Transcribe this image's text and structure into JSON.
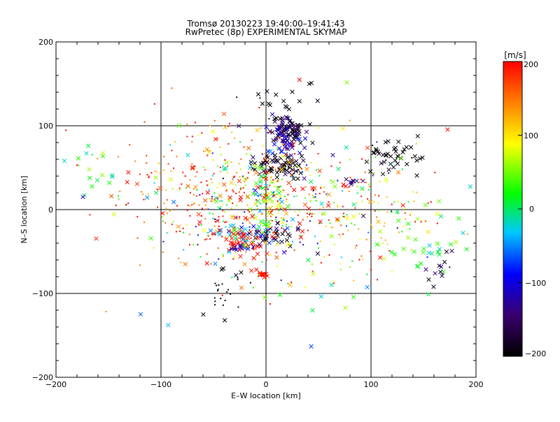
{
  "chart_data": {
    "type": "scatter",
    "title": "Tromsø 20130223 19:40:00–19:41:43",
    "subtitle": "RwPretec (8p) EXPERIMENTAL SKYMAP",
    "xlabel": "E–W location [km]",
    "ylabel": "N–S location [km]",
    "xlim": [
      -200,
      200
    ],
    "ylim": [
      -200,
      200
    ],
    "xticks": [
      "−200",
      "−100",
      "0",
      "100",
      "200"
    ],
    "yticks": [
      "200",
      "100",
      "0",
      "−100",
      "−200"
    ],
    "grid": true,
    "colorbar": {
      "label": "[m/s]",
      "range": [
        -200,
        200
      ],
      "ticks": [
        "200",
        "100",
        "0",
        "−100",
        "−200"
      ],
      "colormap": [
        "#000000",
        "#3a006e",
        "#0000ff",
        "#00c8ff",
        "#00ff00",
        "#ffff00",
        "#ff8000",
        "#ff0000"
      ]
    },
    "markers": [
      "x",
      "dot"
    ],
    "clusters": [
      {
        "x": 20,
        "y": 95,
        "sx": 8,
        "sy": 8,
        "n": 90,
        "v": -170,
        "vs": 30,
        "m": "x"
      },
      {
        "x": 20,
        "y": 80,
        "sx": 10,
        "sy": 12,
        "n": 40,
        "v": -110,
        "vs": 25,
        "m": "x"
      },
      {
        "x": 20,
        "y": 50,
        "sx": 10,
        "sy": 6,
        "n": 45,
        "v": -200,
        "vs": 20,
        "m": "x"
      },
      {
        "x": 20,
        "y": 125,
        "sx": 15,
        "sy": 10,
        "n": 20,
        "v": -200,
        "vs": 15,
        "m": "x"
      },
      {
        "x": 120,
        "y": 65,
        "sx": 14,
        "sy": 10,
        "n": 45,
        "v": -200,
        "vs": 15,
        "m": "x"
      },
      {
        "x": 0,
        "y": 55,
        "sx": 8,
        "sy": 6,
        "n": 25,
        "v": -190,
        "vs": 20,
        "m": "x"
      },
      {
        "x": 85,
        "y": 32,
        "sx": 5,
        "sy": 3,
        "n": 8,
        "v": -150,
        "vs": 20,
        "m": "x"
      },
      {
        "x": -25,
        "y": -40,
        "sx": 10,
        "sy": 8,
        "n": 35,
        "v": 200,
        "vs": 15,
        "m": "x"
      },
      {
        "x": -15,
        "y": -30,
        "sx": 15,
        "sy": 6,
        "n": 40,
        "v": -40,
        "vs": 40,
        "m": "x"
      },
      {
        "x": 5,
        "y": -30,
        "sx": 10,
        "sy": 8,
        "n": 35,
        "v": -170,
        "vs": 30,
        "m": "x"
      },
      {
        "x": -30,
        "y": -45,
        "sx": 6,
        "sy": 4,
        "n": 12,
        "v": -130,
        "vs": 25,
        "m": "x"
      },
      {
        "x": -40,
        "y": -95,
        "sx": 10,
        "sy": 15,
        "n": 25,
        "v": -200,
        "vs": 15,
        "m": "dot"
      },
      {
        "x": -5,
        "y": -77,
        "sx": 4,
        "sy": 3,
        "n": 14,
        "v": 200,
        "vs": 10,
        "m": "x"
      },
      {
        "x": -160,
        "y": 45,
        "sx": 15,
        "sy": 15,
        "n": 18,
        "v": 20,
        "vs": 30,
        "m": "x"
      },
      {
        "x": 155,
        "y": -30,
        "sx": 20,
        "sy": 20,
        "n": 35,
        "v": 25,
        "vs": 35,
        "m": "x"
      },
      {
        "x": 170,
        "y": -75,
        "sx": 12,
        "sy": 12,
        "n": 14,
        "v": -180,
        "vs": 30,
        "m": "x"
      },
      {
        "x": 0,
        "y": 20,
        "sx": 8,
        "sy": 25,
        "n": 50,
        "v": 40,
        "vs": 60,
        "m": "x"
      },
      {
        "x": -10,
        "y": 0,
        "sx": 45,
        "sy": 40,
        "n": 350,
        "v": 80,
        "vs": 110,
        "m": "dot"
      },
      {
        "x": -60,
        "y": 30,
        "sx": 45,
        "sy": 45,
        "n": 180,
        "v": 170,
        "vs": 40,
        "m": "dot"
      },
      {
        "x": 60,
        "y": 10,
        "sx": 45,
        "sy": 35,
        "n": 120,
        "v": 100,
        "vs": 90,
        "m": "dot"
      },
      {
        "x": 110,
        "y": -10,
        "sx": 40,
        "sy": 40,
        "n": 80,
        "v": 140,
        "vs": 80,
        "m": "dot"
      },
      {
        "x": 0,
        "y": 0,
        "sx": 80,
        "sy": 70,
        "n": 80,
        "v": 60,
        "vs": 130,
        "m": "x"
      }
    ]
  }
}
